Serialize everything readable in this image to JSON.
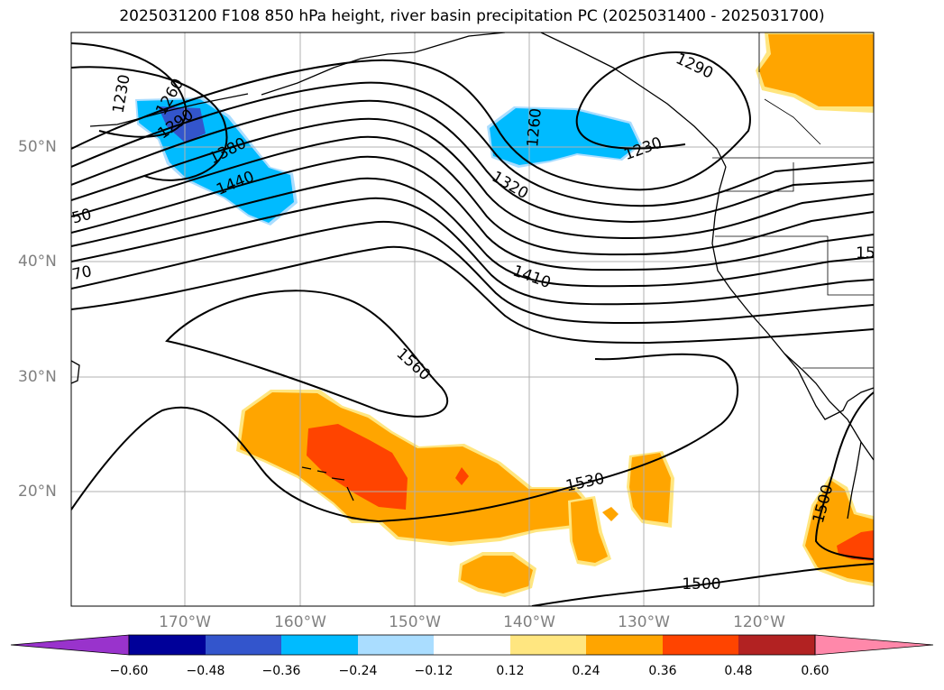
{
  "title": "2025031200 F108 850 hPa height, river basin precipitation PC (2025031400 - 2025031700)",
  "latitude_labels": [
    "50°N",
    "40°N",
    "30°N",
    "20°N"
  ],
  "longitude_labels": [
    "170°W",
    "160°W",
    "150°W",
    "140°W",
    "130°W",
    "120°W"
  ],
  "contour_labels": [
    "1230",
    "1260",
    "1290",
    "1380",
    "1440",
    "50",
    "70",
    "1260",
    "1230",
    "1290",
    "1320",
    "1410",
    "1560",
    "1530",
    "1500",
    "1500",
    "15"
  ],
  "colorbar": {
    "colors": [
      "#9933cc",
      "#000099",
      "#3355cc",
      "#00bbff",
      "#aaddff",
      "#ffffff",
      "#ffe680",
      "#ffa500",
      "#ff4400",
      "#b22222",
      "#ff88aa"
    ],
    "tick_labels": [
      "−0.60",
      "−0.48",
      "−0.36",
      "−0.24",
      "−0.12",
      "0.12",
      "0.24",
      "0.36",
      "0.48",
      "0.60"
    ]
  },
  "colors": {
    "positive_light": "#ffe680",
    "positive_mid": "#ffa500",
    "positive_high": "#ff4400",
    "negative_mid": "#00bbff",
    "negative_high": "#3355cc",
    "gridline": "#b0b0b0",
    "label_gray": "#808080"
  }
}
